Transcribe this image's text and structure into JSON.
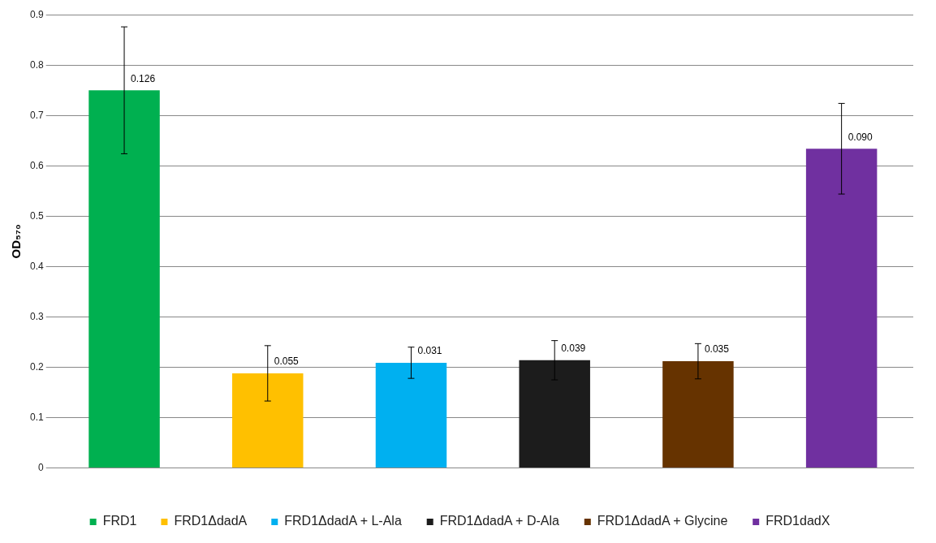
{
  "chart_data": {
    "type": "bar",
    "ylabel": "OD₅₇₀",
    "categories": [
      null,
      null,
      null,
      null,
      null,
      null
    ],
    "series": [
      {
        "name": "FRD1",
        "color": "#00b050",
        "values": [
          0.75,
          null,
          null,
          null,
          null,
          null
        ],
        "errors": [
          0.126,
          null,
          null,
          null,
          null,
          null
        ]
      },
      {
        "name": "FRD1ΔdadA",
        "color": "#ffc000",
        "values": [
          null,
          0.188,
          null,
          null,
          null,
          null
        ],
        "errors": [
          null,
          0.055,
          null,
          null,
          null,
          null
        ]
      },
      {
        "name": "FRD1ΔdadA + L-Ala",
        "color": "#00b0f0",
        "values": [
          null,
          null,
          0.209,
          null,
          null,
          null
        ],
        "errors": [
          null,
          null,
          0.031,
          null,
          null,
          null
        ]
      },
      {
        "name": "FRD1ΔdadA + D-Ala",
        "color": "#1c1c1c",
        "values": [
          null,
          null,
          null,
          0.214,
          null,
          null
        ],
        "errors": [
          null,
          null,
          null,
          0.039,
          null,
          null
        ]
      },
      {
        "name": "FRD1ΔdadA + Glycine",
        "color": "#663300",
        "values": [
          null,
          null,
          null,
          null,
          0.212,
          null
        ],
        "errors": [
          null,
          null,
          null,
          null,
          0.035,
          null
        ]
      },
      {
        "name": "FRD1dadX",
        "color": "#7030a0",
        "values": [
          null,
          null,
          null,
          null,
          null,
          0.634
        ],
        "errors": [
          null,
          null,
          null,
          null,
          null,
          0.09
        ]
      }
    ],
    "annotations": [
      {
        "text": "0.126",
        "y": 0.75
      },
      {
        "text": "0.055",
        "y": 0.188
      },
      {
        "text": "0.031",
        "y": 0.209
      },
      {
        "text": "0.039",
        "y": 0.214
      },
      {
        "text": "0.035",
        "y": 0.212
      },
      {
        "text": "0.090",
        "y": 0.634
      }
    ],
    "ylim": [
      0,
      0.9
    ],
    "yticks": [
      0,
      0.1,
      0.2,
      0.3,
      0.4,
      0.5,
      0.6,
      0.7,
      0.8,
      0.9
    ],
    "grid": "y",
    "legend": "bottom"
  }
}
